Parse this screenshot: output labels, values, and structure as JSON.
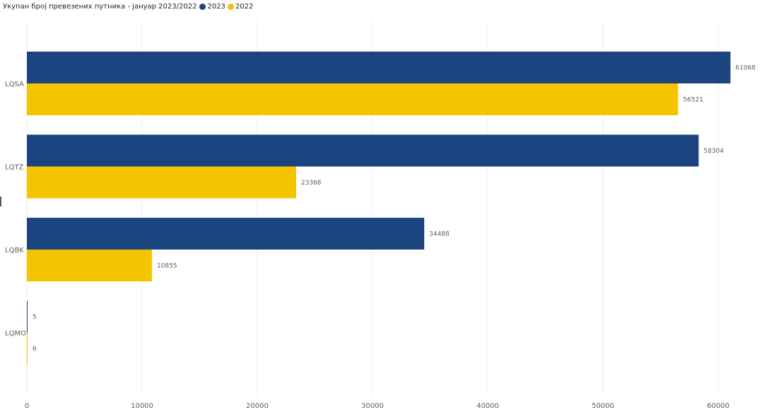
{
  "chart_data": {
    "type": "bar",
    "orientation": "horizontal",
    "title": "Укупан број превезених путника - јануар 2023/2022",
    "categories": [
      "LQSA",
      "LQTZ",
      "LQBK",
      "LQMO"
    ],
    "series": [
      {
        "name": "2023",
        "color": "#1b4480",
        "values": [
          61068,
          58304,
          34488,
          5
        ]
      },
      {
        "name": "2022",
        "color": "#f5c400",
        "values": [
          56521,
          23368,
          10855,
          6
        ]
      }
    ],
    "xlim": [
      0,
      62000
    ],
    "xticks": [
      0,
      10000,
      20000,
      30000,
      40000,
      50000,
      60000
    ],
    "grid": true,
    "legend_position": "top-left"
  }
}
